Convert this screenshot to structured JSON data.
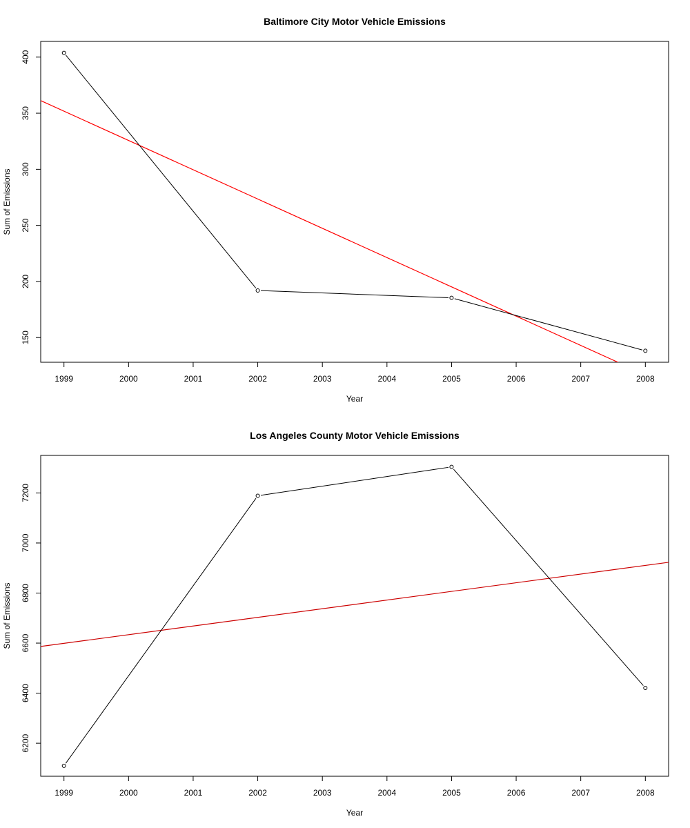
{
  "chart_data": [
    {
      "type": "line",
      "title": "Baltimore City Motor Vehicle Emissions",
      "xlabel": "Year",
      "ylabel": "Sum of Emissions",
      "xlim": [
        1998.64,
        2008.36
      ],
      "ylim": [
        128,
        414
      ],
      "x_ticks": [
        1999,
        2000,
        2001,
        2002,
        2003,
        2004,
        2005,
        2006,
        2007,
        2008
      ],
      "y_ticks": [
        150,
        200,
        250,
        300,
        350,
        400
      ],
      "grid": false,
      "legend": "none",
      "series": [
        {
          "x": [
            1999,
            2002,
            2005,
            2008
          ],
          "y": [
            403.8,
            192.0,
            185.4,
            138.2
          ],
          "color": "#000000",
          "markers": "open-circle"
        }
      ],
      "fit_line": {
        "color": "#ff0000",
        "intercept_at_1999": 351.8,
        "slope_per_year": -26.1
      }
    },
    {
      "type": "line",
      "title": "Los Angeles County Motor Vehicle Emissions",
      "xlabel": "Year",
      "ylabel": "Sum of Emissions",
      "xlim": [
        1998.64,
        2008.36
      ],
      "ylim": [
        6068,
        7350
      ],
      "x_ticks": [
        1999,
        2000,
        2001,
        2002,
        2003,
        2004,
        2005,
        2006,
        2007,
        2008
      ],
      "y_ticks": [
        6200,
        6400,
        6600,
        6800,
        7000,
        7200
      ],
      "grid": false,
      "legend": "none",
      "series": [
        {
          "x": [
            1999,
            2002,
            2005,
            2008
          ],
          "y": [
            6109.7,
            7188.7,
            7304.1,
            6421.0
          ],
          "color": "#000000",
          "markers": "open-circle"
        }
      ],
      "fit_line": {
        "color": "#cc0000",
        "intercept_at_1999": 6599.0,
        "slope_per_year": 34.6
      }
    }
  ]
}
